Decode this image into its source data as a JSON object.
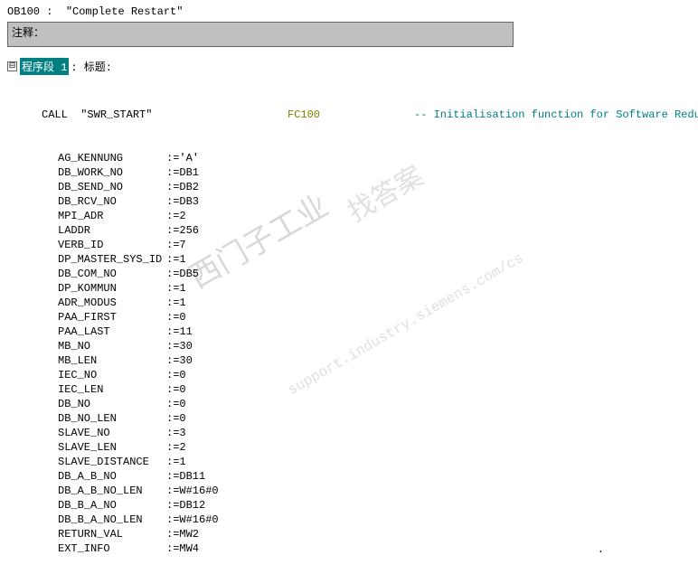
{
  "block": {
    "name": "OB100",
    "title": "\"Complete Restart\""
  },
  "commentLabel": "注释：",
  "network": {
    "label": "程序段 1",
    "after": ": 标题:"
  },
  "call": {
    "keyword": "CALL",
    "name": "\"SWR_START\"",
    "ref": "FC100",
    "comment": "-- Initialisation function for Software Redundance"
  },
  "params": [
    {
      "n": "AG_KENNUNG",
      "v": ":='A'"
    },
    {
      "n": "DB_WORK_NO",
      "v": ":=DB1"
    },
    {
      "n": "DB_SEND_NO",
      "v": ":=DB2"
    },
    {
      "n": "DB_RCV_NO",
      "v": ":=DB3"
    },
    {
      "n": "MPI_ADR",
      "v": ":=2"
    },
    {
      "n": "LADDR",
      "v": ":=256"
    },
    {
      "n": "VERB_ID",
      "v": ":=7"
    },
    {
      "n": "DP_MASTER_SYS_ID",
      "v": ":=1"
    },
    {
      "n": "DB_COM_NO",
      "v": ":=DB5"
    },
    {
      "n": "DP_KOMMUN",
      "v": ":=1"
    },
    {
      "n": "ADR_MODUS",
      "v": ":=1"
    },
    {
      "n": "PAA_FIRST",
      "v": ":=0"
    },
    {
      "n": "PAA_LAST",
      "v": ":=11"
    },
    {
      "n": "MB_NO",
      "v": ":=30"
    },
    {
      "n": "MB_LEN",
      "v": ":=30"
    },
    {
      "n": "IEC_NO",
      "v": ":=0"
    },
    {
      "n": "IEC_LEN",
      "v": ":=0"
    },
    {
      "n": "DB_NO",
      "v": ":=0"
    },
    {
      "n": "DB_NO_LEN",
      "v": ":=0"
    },
    {
      "n": "SLAVE_NO",
      "v": ":=3"
    },
    {
      "n": "SLAVE_LEN",
      "v": ":=2"
    },
    {
      "n": "SLAVE_DISTANCE",
      "v": ":=1"
    },
    {
      "n": "DB_A_B_NO",
      "v": ":=DB11"
    },
    {
      "n": "DB_A_B_NO_LEN",
      "v": ":=W#16#0"
    },
    {
      "n": "DB_B_A_NO",
      "v": ":=DB12"
    },
    {
      "n": "DB_B_A_NO_LEN",
      "v": ":=W#16#0"
    },
    {
      "n": "RETURN_VAL",
      "v": ":=MW2"
    },
    {
      "n": "EXT_INFO",
      "v": ":=MW4"
    }
  ],
  "watermarks": {
    "w1": "西门子工业",
    "w2": "找答案",
    "w3": "support.industry.siemens.com/cs"
  },
  "expandGlyph": "⊟"
}
